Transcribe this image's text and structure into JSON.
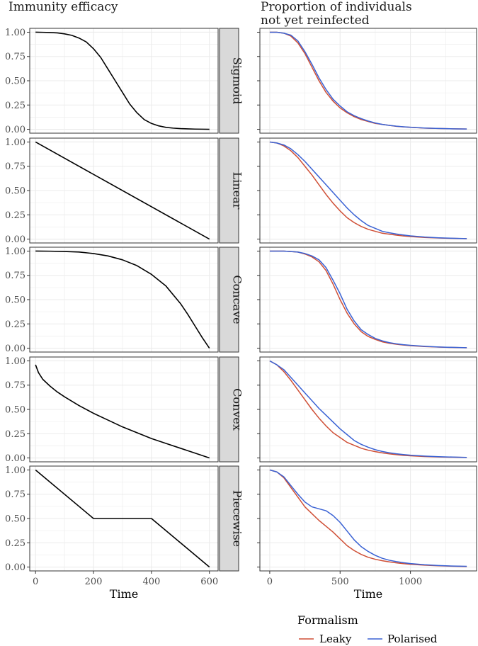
{
  "chart_data": {
    "type": "line",
    "panel_titles": {
      "left": [
        "Immunity efficacy"
      ],
      "right": [
        "Proportion of individuals",
        "not yet reinfected"
      ]
    },
    "xlabel": "Time",
    "rows": [
      "Sigmoid",
      "Linear",
      "Concave",
      "Convex",
      "Piecewise"
    ],
    "left": {
      "xlim": [
        -20,
        630
      ],
      "ylim": [
        -0.04,
        1.04
      ],
      "xticks": [
        0,
        200,
        400,
        600
      ],
      "yticks": [
        0,
        0.25,
        0.5,
        0.75,
        1
      ],
      "ytick_labels": [
        "0.00",
        "0.25",
        "0.50",
        "0.75",
        "1.00"
      ],
      "series": {
        "Sigmoid": {
          "x": [
            0,
            25,
            50,
            75,
            100,
            125,
            150,
            175,
            200,
            225,
            250,
            275,
            300,
            325,
            350,
            375,
            400,
            425,
            450,
            475,
            500,
            525,
            550,
            575,
            600
          ],
          "y": [
            1.0,
            0.999,
            0.997,
            0.993,
            0.983,
            0.968,
            0.94,
            0.9,
            0.83,
            0.74,
            0.62,
            0.5,
            0.38,
            0.26,
            0.17,
            0.1,
            0.06,
            0.035,
            0.02,
            0.012,
            0.007,
            0.004,
            0.002,
            0.001,
            0.0
          ]
        },
        "Linear": {
          "x": [
            0,
            600
          ],
          "y": [
            1.0,
            0.0
          ]
        },
        "Concave": {
          "x": [
            0,
            50,
            100,
            150,
            200,
            250,
            300,
            350,
            400,
            450,
            500,
            525,
            550,
            575,
            600
          ],
          "y": [
            1.0,
            0.999,
            0.996,
            0.99,
            0.975,
            0.95,
            0.91,
            0.85,
            0.76,
            0.64,
            0.46,
            0.35,
            0.23,
            0.11,
            0.0
          ]
        },
        "Convex": {
          "x": [
            0,
            10,
            25,
            50,
            75,
            100,
            150,
            200,
            250,
            300,
            350,
            400,
            450,
            500,
            550,
            600
          ],
          "y": [
            0.96,
            0.88,
            0.81,
            0.74,
            0.68,
            0.63,
            0.54,
            0.46,
            0.39,
            0.32,
            0.26,
            0.2,
            0.15,
            0.1,
            0.05,
            0.0
          ]
        },
        "Piecewise": {
          "x": [
            0,
            200,
            400,
            600
          ],
          "y": [
            1.0,
            0.5,
            0.5,
            0.0
          ]
        }
      }
    },
    "right": {
      "xlim": [
        -70,
        1470
      ],
      "ylim": [
        -0.04,
        1.04
      ],
      "xticks": [
        0,
        500,
        1000
      ],
      "yticks": [
        0,
        0.25,
        0.5,
        0.75,
        1
      ],
      "x": [
        0,
        50,
        100,
        150,
        200,
        250,
        300,
        350,
        400,
        450,
        500,
        550,
        600,
        650,
        700,
        750,
        800,
        850,
        900,
        950,
        1000,
        1100,
        1200,
        1300,
        1400
      ],
      "series": {
        "Sigmoid": {
          "Leaky": [
            1.0,
            1.0,
            0.99,
            0.96,
            0.89,
            0.78,
            0.64,
            0.5,
            0.38,
            0.29,
            0.22,
            0.17,
            0.13,
            0.1,
            0.08,
            0.06,
            0.05,
            0.04,
            0.03,
            0.025,
            0.02,
            0.012,
            0.008,
            0.005,
            0.003
          ],
          "Polarised": [
            1.0,
            1.0,
            0.99,
            0.97,
            0.91,
            0.8,
            0.67,
            0.53,
            0.41,
            0.31,
            0.24,
            0.18,
            0.14,
            0.11,
            0.085,
            0.065,
            0.05,
            0.04,
            0.032,
            0.026,
            0.021,
            0.013,
            0.008,
            0.005,
            0.003
          ]
        },
        "Linear": {
          "Leaky": [
            1.0,
            0.99,
            0.96,
            0.91,
            0.84,
            0.75,
            0.66,
            0.56,
            0.46,
            0.37,
            0.29,
            0.22,
            0.17,
            0.13,
            0.1,
            0.08,
            0.06,
            0.05,
            0.04,
            0.032,
            0.026,
            0.017,
            0.011,
            0.007,
            0.004
          ],
          "Polarised": [
            1.0,
            0.99,
            0.97,
            0.93,
            0.87,
            0.8,
            0.72,
            0.64,
            0.56,
            0.48,
            0.4,
            0.32,
            0.25,
            0.19,
            0.14,
            0.11,
            0.08,
            0.065,
            0.052,
            0.042,
            0.033,
            0.021,
            0.013,
            0.008,
            0.005
          ]
        },
        "Concave": {
          "Leaky": [
            1.0,
            1.0,
            1.0,
            0.995,
            0.99,
            0.97,
            0.94,
            0.89,
            0.8,
            0.66,
            0.5,
            0.36,
            0.25,
            0.17,
            0.12,
            0.09,
            0.065,
            0.05,
            0.04,
            0.032,
            0.026,
            0.017,
            0.011,
            0.007,
            0.004
          ],
          "Polarised": [
            1.0,
            1.0,
            1.0,
            0.995,
            0.99,
            0.975,
            0.95,
            0.91,
            0.83,
            0.7,
            0.56,
            0.4,
            0.28,
            0.19,
            0.14,
            0.1,
            0.075,
            0.057,
            0.045,
            0.036,
            0.029,
            0.019,
            0.012,
            0.008,
            0.005
          ]
        },
        "Convex": {
          "Leaky": [
            1.0,
            0.96,
            0.89,
            0.8,
            0.7,
            0.6,
            0.5,
            0.41,
            0.33,
            0.26,
            0.21,
            0.16,
            0.13,
            0.1,
            0.08,
            0.065,
            0.052,
            0.042,
            0.034,
            0.027,
            0.022,
            0.015,
            0.01,
            0.007,
            0.005
          ],
          "Polarised": [
            1.0,
            0.96,
            0.91,
            0.83,
            0.75,
            0.67,
            0.59,
            0.51,
            0.44,
            0.37,
            0.3,
            0.24,
            0.18,
            0.14,
            0.11,
            0.085,
            0.067,
            0.053,
            0.043,
            0.035,
            0.028,
            0.019,
            0.013,
            0.009,
            0.006
          ]
        },
        "Piecewise": {
          "Leaky": [
            1.0,
            0.98,
            0.92,
            0.82,
            0.72,
            0.62,
            0.55,
            0.48,
            0.42,
            0.36,
            0.29,
            0.22,
            0.17,
            0.13,
            0.1,
            0.08,
            0.065,
            0.053,
            0.043,
            0.035,
            0.028,
            0.019,
            0.013,
            0.008,
            0.005
          ],
          "Polarised": [
            1.0,
            0.98,
            0.93,
            0.84,
            0.75,
            0.67,
            0.62,
            0.6,
            0.58,
            0.53,
            0.46,
            0.37,
            0.28,
            0.21,
            0.16,
            0.12,
            0.09,
            0.07,
            0.056,
            0.045,
            0.036,
            0.024,
            0.016,
            0.01,
            0.007
          ]
        }
      }
    },
    "legend": {
      "title": "Formalism",
      "position": "bottom",
      "entries": [
        {
          "name": "Leaky",
          "color": "#cf4f36"
        },
        {
          "name": "Polarised",
          "color": "#3a62d4"
        }
      ]
    },
    "grid": true,
    "colors": {
      "curve": "#000000",
      "grid": "#ebebeb",
      "strip_bg": "#d9d9d9",
      "panel_border": "#333333"
    }
  }
}
